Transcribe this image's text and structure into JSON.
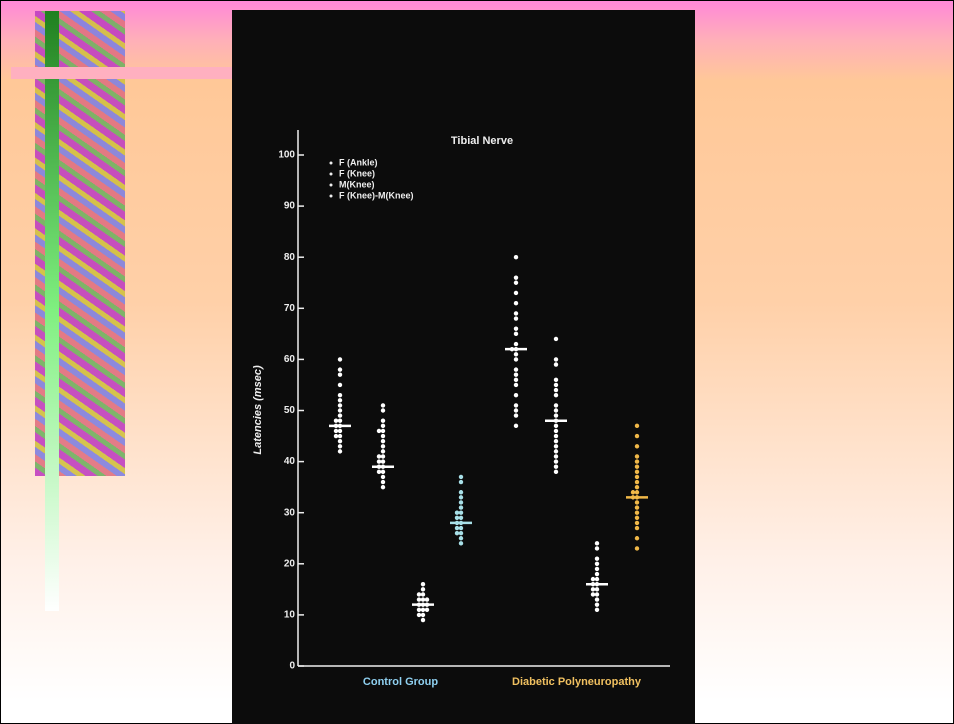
{
  "chart_data": {
    "type": "strip",
    "title": "Tibial Nerve",
    "y_label": "Latencies (msec)",
    "categories": [
      "Control Group",
      "Diabetic Polyneuropathy"
    ],
    "category_colors": [
      "#8fd0f0",
      "#f0c060"
    ],
    "ylim": [
      0,
      100
    ],
    "yticks": [
      0,
      10,
      20,
      30,
      40,
      50,
      60,
      70,
      80,
      90,
      100
    ],
    "series": [
      {
        "name": "F (Ankle)",
        "color": "#ffffff",
        "means": [
          47,
          62
        ],
        "values": [
          [
            60,
            58,
            57,
            55,
            53,
            52,
            51,
            50,
            49,
            48,
            48,
            47,
            47,
            46,
            46,
            45,
            45,
            44,
            43,
            42
          ],
          [
            80,
            76,
            75,
            73,
            71,
            69,
            68,
            66,
            65,
            63,
            62,
            62,
            61,
            60,
            58,
            57,
            56,
            55,
            53,
            51,
            50,
            49,
            47
          ]
        ]
      },
      {
        "name": "F (Knee)",
        "color": "#ffffff",
        "means": [
          39,
          48
        ],
        "values": [
          [
            51,
            50,
            48,
            47,
            46,
            46,
            45,
            44,
            43,
            42,
            41,
            41,
            40,
            40,
            39,
            39,
            38,
            38,
            37,
            36,
            35
          ],
          [
            64,
            60,
            59,
            56,
            55,
            54,
            53,
            51,
            50,
            49,
            48,
            47,
            46,
            45,
            44,
            43,
            42,
            41,
            40,
            39,
            38
          ]
        ]
      },
      {
        "name": "M(Knee)",
        "color": "#ffffff",
        "means": [
          12,
          16
        ],
        "values": [
          [
            16,
            15,
            14,
            14,
            13,
            13,
            13,
            12,
            12,
            12,
            11,
            11,
            11,
            10,
            10,
            9
          ],
          [
            24,
            23,
            21,
            20,
            19,
            18,
            17,
            17,
            16,
            16,
            15,
            15,
            14,
            14,
            13,
            12,
            11
          ]
        ]
      },
      {
        "name": "F (Knee)-M(Knee)",
        "color": [
          "#a8e0e8",
          "#f0b848"
        ],
        "means": [
          28,
          33
        ],
        "values": [
          [
            37,
            36,
            34,
            33,
            32,
            31,
            30,
            30,
            29,
            29,
            28,
            28,
            27,
            27,
            26,
            26,
            25,
            24
          ],
          [
            47,
            45,
            43,
            41,
            40,
            39,
            38,
            37,
            36,
            35,
            34,
            34,
            33,
            33,
            32,
            31,
            30,
            29,
            28,
            27,
            25,
            23
          ]
        ]
      }
    ]
  }
}
